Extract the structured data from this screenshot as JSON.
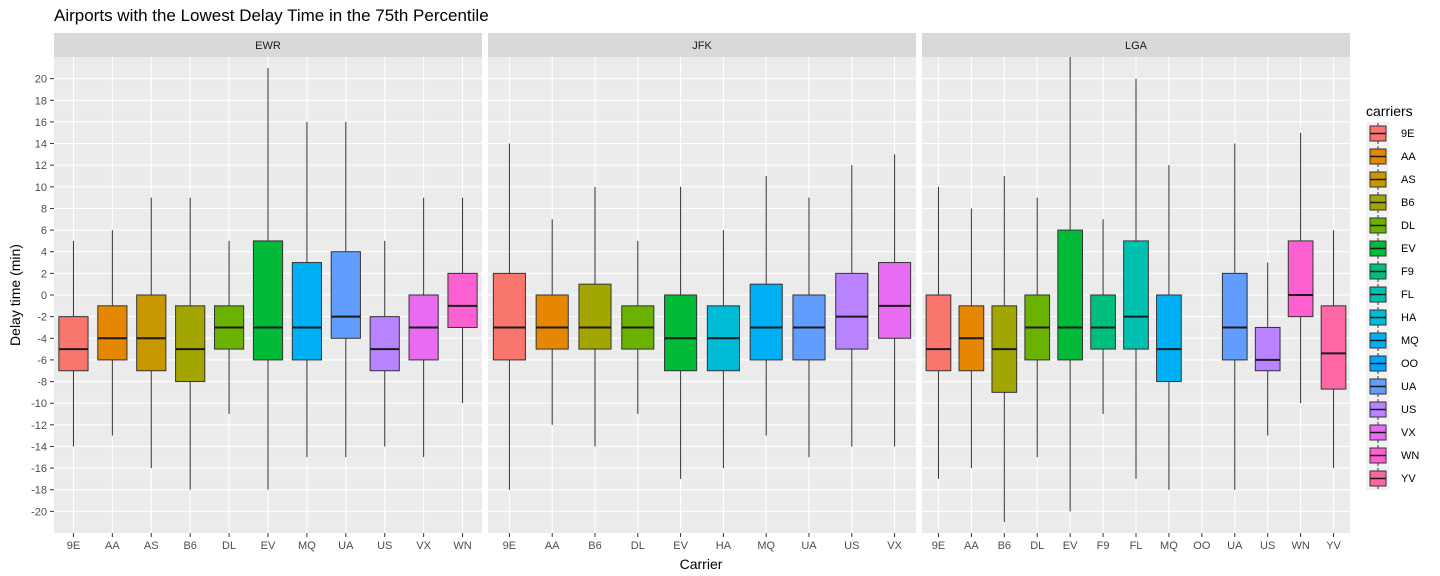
{
  "chart_data": {
    "type": "boxplot",
    "title": "Airports with the Lowest Delay Time in the 75th Percentile",
    "xlabel": "Carrier",
    "ylabel": "Delay time (min)",
    "ylim": [
      -22,
      22
    ],
    "yticks": [
      -20,
      -18,
      -16,
      -14,
      -12,
      -10,
      -8,
      -6,
      -4,
      -2,
      0,
      2,
      4,
      6,
      8,
      10,
      12,
      14,
      16,
      18,
      20
    ],
    "grid": true,
    "legend": {
      "title": "carriers",
      "position": "right"
    },
    "carriers": [
      {
        "name": "9E",
        "color": "#F8766D"
      },
      {
        "name": "AA",
        "color": "#E58700"
      },
      {
        "name": "AS",
        "color": "#C99800"
      },
      {
        "name": "B6",
        "color": "#A3A500"
      },
      {
        "name": "DL",
        "color": "#6BB100"
      },
      {
        "name": "EV",
        "color": "#00BA38"
      },
      {
        "name": "F9",
        "color": "#00BF7D"
      },
      {
        "name": "FL",
        "color": "#00C0AF"
      },
      {
        "name": "HA",
        "color": "#00BCD8"
      },
      {
        "name": "MQ",
        "color": "#00B0F6"
      },
      {
        "name": "OO",
        "color": "#00A5FF"
      },
      {
        "name": "UA",
        "color": "#619CFF"
      },
      {
        "name": "US",
        "color": "#B983FF"
      },
      {
        "name": "VX",
        "color": "#E76BF3"
      },
      {
        "name": "WN",
        "color": "#FD61D1"
      },
      {
        "name": "YV",
        "color": "#FF67A4"
      }
    ],
    "panels": [
      {
        "airport": "EWR",
        "categories": [
          "9E",
          "AA",
          "AS",
          "B6",
          "DL",
          "EV",
          "MQ",
          "UA",
          "US",
          "VX",
          "WN"
        ],
        "boxes": [
          {
            "carrier": "9E",
            "min": -14,
            "q1": -7,
            "median": -5,
            "q3": -2,
            "max": 5
          },
          {
            "carrier": "AA",
            "min": -13,
            "q1": -6,
            "median": -4,
            "q3": -1,
            "max": 6
          },
          {
            "carrier": "AS",
            "min": -16,
            "q1": -7,
            "median": -4,
            "q3": 0,
            "max": 9
          },
          {
            "carrier": "B6",
            "min": -18,
            "q1": -8,
            "median": -5,
            "q3": -1,
            "max": 9
          },
          {
            "carrier": "DL",
            "min": -11,
            "q1": -5,
            "median": -3,
            "q3": -1,
            "max": 5
          },
          {
            "carrier": "EV",
            "min": -18,
            "q1": -6,
            "median": -3,
            "q3": 5,
            "max": 21
          },
          {
            "carrier": "MQ",
            "min": -15,
            "q1": -6,
            "median": -3,
            "q3": 3,
            "max": 16
          },
          {
            "carrier": "UA",
            "min": -15,
            "q1": -4,
            "median": -2,
            "q3": 4,
            "max": 16
          },
          {
            "carrier": "US",
            "min": -14,
            "q1": -7,
            "median": -5,
            "q3": -2,
            "max": 5
          },
          {
            "carrier": "VX",
            "min": -15,
            "q1": -6,
            "median": -3,
            "q3": 0,
            "max": 9
          },
          {
            "carrier": "WN",
            "min": -10,
            "q1": -3,
            "median": -1,
            "q3": 2,
            "max": 9
          }
        ]
      },
      {
        "airport": "JFK",
        "categories": [
          "9E",
          "AA",
          "B6",
          "DL",
          "EV",
          "HA",
          "MQ",
          "UA",
          "US",
          "VX"
        ],
        "boxes": [
          {
            "carrier": "9E",
            "min": -18,
            "q1": -6,
            "median": -3,
            "q3": 2,
            "max": 14
          },
          {
            "carrier": "AA",
            "min": -12,
            "q1": -5,
            "median": -3,
            "q3": 0,
            "max": 7
          },
          {
            "carrier": "B6",
            "min": -14,
            "q1": -5,
            "median": -3,
            "q3": 1,
            "max": 10
          },
          {
            "carrier": "DL",
            "min": -11,
            "q1": -5,
            "median": -3,
            "q3": -1,
            "max": 5
          },
          {
            "carrier": "EV",
            "min": -17,
            "q1": -7,
            "median": -4,
            "q3": 0,
            "max": 10
          },
          {
            "carrier": "HA",
            "min": -16,
            "q1": -7,
            "median": -4,
            "q3": -1,
            "max": 6
          },
          {
            "carrier": "MQ",
            "min": -13,
            "q1": -6,
            "median": -3,
            "q3": 1,
            "max": 11
          },
          {
            "carrier": "UA",
            "min": -15,
            "q1": -6,
            "median": -3,
            "q3": 0,
            "max": 9
          },
          {
            "carrier": "US",
            "min": -14,
            "q1": -5,
            "median": -2,
            "q3": 2,
            "max": 12
          },
          {
            "carrier": "VX",
            "min": -14,
            "q1": -4,
            "median": -1,
            "q3": 3,
            "max": 13
          }
        ]
      },
      {
        "airport": "LGA",
        "categories": [
          "9E",
          "AA",
          "B6",
          "DL",
          "EV",
          "F9",
          "FL",
          "MQ",
          "OO",
          "UA",
          "US",
          "WN",
          "YV"
        ],
        "boxes": [
          {
            "carrier": "9E",
            "min": -17,
            "q1": -7,
            "median": -5,
            "q3": 0,
            "max": 10
          },
          {
            "carrier": "AA",
            "min": -16,
            "q1": -7,
            "median": -4,
            "q3": -1,
            "max": 8
          },
          {
            "carrier": "B6",
            "min": -21,
            "q1": -9,
            "median": -5,
            "q3": -1,
            "max": 11
          },
          {
            "carrier": "DL",
            "min": -15,
            "q1": -6,
            "median": -3,
            "q3": 0,
            "max": 9
          },
          {
            "carrier": "EV",
            "min": -20,
            "q1": -6,
            "median": -3,
            "q3": 6,
            "max": 22
          },
          {
            "carrier": "F9",
            "min": -11,
            "q1": -5,
            "median": -3,
            "q3": 0,
            "max": 7
          },
          {
            "carrier": "FL",
            "min": -17,
            "q1": -5,
            "median": -2,
            "q3": 5,
            "max": 20
          },
          {
            "carrier": "MQ",
            "min": -18,
            "q1": -8,
            "median": -5,
            "q3": 0,
            "max": 12
          },
          {
            "carrier": "UA",
            "min": -18,
            "q1": -6,
            "median": -3,
            "q3": 2,
            "max": 14
          },
          {
            "carrier": "US",
            "min": -13,
            "q1": -7,
            "median": -6,
            "q3": -3,
            "max": 3
          },
          {
            "carrier": "WN",
            "min": -10,
            "q1": -2,
            "median": 0,
            "q3": 5,
            "max": 15
          },
          {
            "carrier": "YV",
            "min": -16,
            "q1": -8.7,
            "median": -5.4,
            "q3": -1,
            "max": 6
          }
        ]
      }
    ]
  }
}
